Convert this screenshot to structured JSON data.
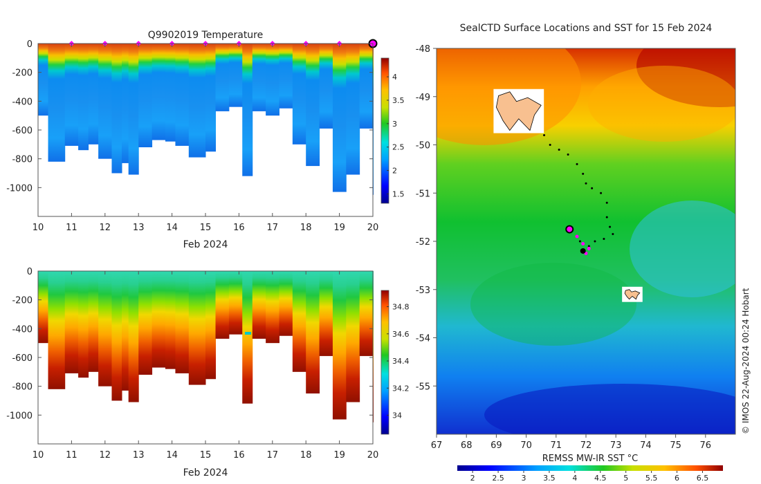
{
  "chart_data": [
    {
      "type": "heatmap",
      "name": "temperature-section",
      "title": "Q9902019  Temperature",
      "xlabel": "Feb 2024",
      "ylabel": "",
      "xlim": [
        10,
        20
      ],
      "ylim": [
        -1200,
        0
      ],
      "xticks": [
        10,
        11,
        12,
        13,
        14,
        15,
        16,
        17,
        18,
        19,
        20
      ],
      "yticks": [
        0,
        -200,
        -400,
        -600,
        -800,
        -1000
      ],
      "surface_markers_x": [
        11,
        12,
        13,
        14,
        15,
        16,
        17,
        18,
        19
      ],
      "current_marker_x": 20,
      "colorbar": {
        "ticks": [
          1.5,
          2,
          2.5,
          3,
          3.5,
          4
        ],
        "range": [
          1.3,
          4.4
        ]
      },
      "profile_depths": [
        {
          "x": 10.0,
          "max_depth": 500
        },
        {
          "x": 10.3,
          "max_depth": 820
        },
        {
          "x": 10.8,
          "max_depth": 710
        },
        {
          "x": 11.2,
          "max_depth": 740
        },
        {
          "x": 11.5,
          "max_depth": 700
        },
        {
          "x": 11.8,
          "max_depth": 800
        },
        {
          "x": 12.2,
          "max_depth": 900
        },
        {
          "x": 12.5,
          "max_depth": 830
        },
        {
          "x": 12.7,
          "max_depth": 910
        },
        {
          "x": 13.0,
          "max_depth": 720
        },
        {
          "x": 13.4,
          "max_depth": 670
        },
        {
          "x": 13.8,
          "max_depth": 680
        },
        {
          "x": 14.1,
          "max_depth": 710
        },
        {
          "x": 14.5,
          "max_depth": 790
        },
        {
          "x": 15.0,
          "max_depth": 750
        },
        {
          "x": 15.3,
          "max_depth": 470
        },
        {
          "x": 15.7,
          "max_depth": 440
        },
        {
          "x": 16.1,
          "max_depth": 920
        },
        {
          "x": 16.4,
          "max_depth": 470
        },
        {
          "x": 16.8,
          "max_depth": 500
        },
        {
          "x": 17.2,
          "max_depth": 450
        },
        {
          "x": 17.6,
          "max_depth": 700
        },
        {
          "x": 18.0,
          "max_depth": 850
        },
        {
          "x": 18.4,
          "max_depth": 590
        },
        {
          "x": 18.8,
          "max_depth": 1030
        },
        {
          "x": 19.2,
          "max_depth": 910
        },
        {
          "x": 19.6,
          "max_depth": 590
        },
        {
          "x": 20.0,
          "max_depth": 1050
        }
      ]
    },
    {
      "type": "heatmap",
      "name": "salinity-section",
      "title": "",
      "xlabel": "Feb 2024",
      "xlim": [
        10,
        20
      ],
      "ylim": [
        -1200,
        0
      ],
      "xticks": [
        10,
        11,
        12,
        13,
        14,
        15,
        16,
        17,
        18,
        19,
        20
      ],
      "yticks": [
        0,
        -200,
        -400,
        -600,
        -800,
        -1000
      ],
      "colorbar": {
        "ticks": [
          34,
          34.2,
          34.4,
          34.6,
          34.8
        ],
        "range": [
          33.86,
          34.92
        ]
      }
    },
    {
      "type": "heatmap",
      "name": "sst-map",
      "title": "SealCTD Surface Locations and SST for 15 Feb 2024",
      "xlim": [
        67,
        77
      ],
      "ylim": [
        -56,
        -48
      ],
      "xticks": [
        67,
        68,
        69,
        70,
        71,
        72,
        73,
        74,
        75,
        76
      ],
      "yticks": [
        -48,
        -49,
        -50,
        -51,
        -52,
        -53,
        -54,
        -55
      ],
      "colorbar_label": "REMSS MW-IR SST °C",
      "colorbar": {
        "ticks": [
          2,
          2.5,
          3,
          3.5,
          4,
          4.5,
          5,
          5.5,
          6,
          6.5
        ],
        "range": [
          1.7,
          6.9
        ]
      },
      "islands": [
        {
          "name": "Kerguelen",
          "lon": [
            69.0,
            70.5
          ],
          "lat": [
            -48.9,
            -49.7
          ]
        },
        {
          "name": "Heard",
          "lon": [
            73.3,
            73.8
          ],
          "lat": [
            -53.0,
            -53.2
          ]
        }
      ],
      "track_points": [
        [
          70.6,
          -49.8
        ],
        [
          70.8,
          -50.0
        ],
        [
          71.1,
          -50.1
        ],
        [
          71.4,
          -50.2
        ],
        [
          71.7,
          -50.4
        ],
        [
          71.9,
          -50.6
        ],
        [
          72.0,
          -50.8
        ],
        [
          72.2,
          -50.9
        ],
        [
          72.5,
          -51.0
        ],
        [
          72.7,
          -51.2
        ],
        [
          72.7,
          -51.5
        ],
        [
          72.8,
          -51.7
        ],
        [
          72.9,
          -51.85
        ],
        [
          72.6,
          -51.95
        ],
        [
          72.3,
          -52.0
        ],
        [
          72.1,
          -52.1
        ],
        [
          71.9,
          -52.2
        ],
        [
          71.8,
          -52.0
        ]
      ],
      "recent_positions": [
        [
          71.7,
          -51.9
        ],
        [
          71.9,
          -52.05
        ],
        [
          72.1,
          -52.15
        ],
        [
          72.0,
          -52.25
        ]
      ],
      "current_position": [
        71.45,
        -51.75
      ],
      "last_position": [
        71.9,
        -52.2
      ]
    }
  ],
  "credit": "© IMOS 22-Aug-2024 00:24 Hobart"
}
